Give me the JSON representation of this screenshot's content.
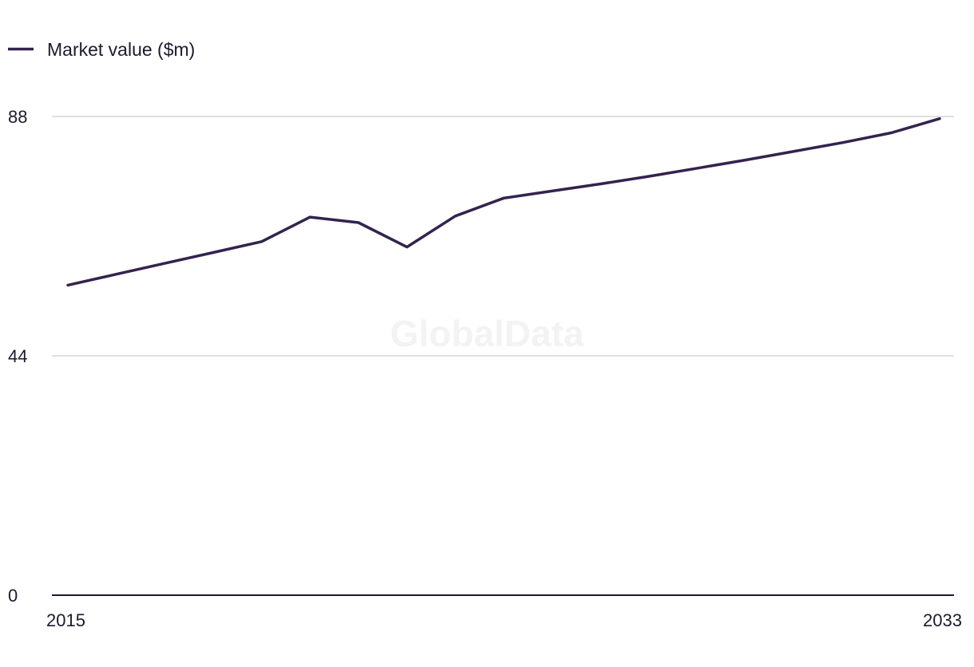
{
  "legend": {
    "label": "Market value ($m)"
  },
  "watermark": "GlobalData",
  "colors": {
    "series": "#33234f",
    "grid": "#d6d6d8",
    "axis": "#1d1a2e"
  },
  "chart_data": {
    "type": "line",
    "title": "",
    "xlabel": "",
    "ylabel": "",
    "xlim": [
      2015,
      2033
    ],
    "ylim": [
      0,
      88
    ],
    "x_ticks": [
      "2015",
      "2033"
    ],
    "y_ticks": [
      "0",
      "44",
      "88"
    ],
    "grid": true,
    "legend_position": "top-left",
    "series": [
      {
        "name": "Market value ($m)",
        "x": [
          2015,
          2016,
          2017,
          2018,
          2019,
          2020,
          2021,
          2022,
          2023,
          2024,
          2025,
          2026,
          2027,
          2028,
          2029,
          2030,
          2031,
          2032,
          2033
        ],
        "values": [
          57.0,
          59.0,
          61.0,
          63.0,
          65.0,
          69.5,
          68.5,
          64.0,
          69.7,
          73.0,
          74.3,
          75.6,
          77.0,
          78.5,
          80.0,
          81.6,
          83.2,
          85.0,
          87.6
        ]
      }
    ]
  }
}
